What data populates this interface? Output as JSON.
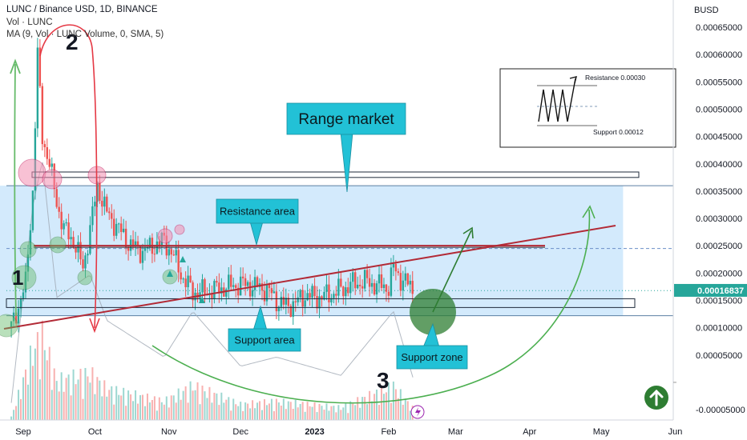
{
  "header": {
    "symbol_line": "LUNC / Binance USD, 1D, BINANCE",
    "vol_line": "Vol · LUNC",
    "ma_line": "MA (9, Vol · LUNC Volume, 0, SMA, 5)"
  },
  "axis": {
    "currency": "BUSD",
    "current_price_label": "0.00016837"
  },
  "chart_data": {
    "type": "candlestick",
    "title": "LUNC / Binance USD, 1D, BINANCE",
    "xlabel": "",
    "ylabel": "",
    "ylim": [
      -6e-05,
      0.00068
    ],
    "y_ticks": [
      0.00065,
      0.0006,
      0.00055,
      0.0005,
      0.00045,
      0.0004,
      0.00035,
      0.0003,
      0.00025,
      0.0002,
      0.00015,
      0.0001,
      5e-05,
      -5e-05
    ],
    "y_tick_labels": [
      "0.00065000",
      "0.00060000",
      "0.00055000",
      "0.00050000",
      "0.00045000",
      "0.00040000",
      "0.00035000",
      "0.00030000",
      "0.00025000",
      "0.00020000",
      "0.00015000",
      "0.00010000",
      "0.00005000",
      "-0.00005000"
    ],
    "x_ticks": [
      "2022-09-01",
      "2022-10-01",
      "2022-11-01",
      "2022-12-01",
      "2023-01-01",
      "2023-02-01",
      "2023-03-01",
      "2023-04-01",
      "2023-05-01",
      "2023-06-01"
    ],
    "x_tick_labels": [
      "Sep",
      "Oct",
      "Nov",
      "Dec",
      "2023",
      "Feb",
      "Mar",
      "Apr",
      "May",
      "Jun"
    ],
    "current_price": 0.00016837,
    "price_path": [
      [
        "2022-08-27",
        0.0001
      ],
      [
        "2022-09-02",
        0.00018
      ],
      [
        "2022-09-05",
        0.00035
      ],
      [
        "2022-09-07",
        0.0006
      ],
      [
        "2022-09-09",
        0.00045
      ],
      [
        "2022-09-12",
        0.0004
      ],
      [
        "2022-09-15",
        0.00033
      ],
      [
        "2022-09-18",
        0.00028
      ],
      [
        "2022-09-22",
        0.00026
      ],
      [
        "2022-09-26",
        0.00021
      ],
      [
        "2022-09-29",
        0.00028
      ],
      [
        "2022-10-02",
        0.00036
      ],
      [
        "2022-10-06",
        0.00031
      ],
      [
        "2022-10-11",
        0.00028
      ],
      [
        "2022-10-16",
        0.00025
      ],
      [
        "2022-10-21",
        0.00024
      ],
      [
        "2022-10-26",
        0.00025
      ],
      [
        "2022-10-30",
        0.00026
      ],
      [
        "2022-11-03",
        0.00023
      ],
      [
        "2022-11-07",
        0.00019
      ],
      [
        "2022-11-11",
        0.000165
      ],
      [
        "2022-11-16",
        0.000165
      ],
      [
        "2022-11-21",
        0.00017
      ],
      [
        "2022-11-26",
        0.000175
      ],
      [
        "2022-12-01",
        0.00018
      ],
      [
        "2022-12-07",
        0.000175
      ],
      [
        "2022-12-12",
        0.00017
      ],
      [
        "2022-12-16",
        0.00015
      ],
      [
        "2022-12-20",
        0.00014
      ],
      [
        "2022-12-24",
        0.000145
      ],
      [
        "2022-12-28",
        0.00016
      ],
      [
        "2023-01-02",
        0.000155
      ],
      [
        "2023-01-07",
        0.00016
      ],
      [
        "2023-01-12",
        0.00017
      ],
      [
        "2023-01-17",
        0.00018
      ],
      [
        "2023-01-22",
        0.000185
      ],
      [
        "2023-01-27",
        0.000178
      ],
      [
        "2023-02-01",
        0.000175
      ],
      [
        "2023-02-03",
        0.00021
      ],
      [
        "2023-02-06",
        0.00019
      ],
      [
        "2023-02-09",
        0.00018
      ],
      [
        "2023-02-12",
        0.000168
      ]
    ],
    "volume_path": [
      [
        "2022-08-27",
        0.02
      ],
      [
        "2022-09-05",
        0.45
      ],
      [
        "2022-09-09",
        0.55
      ],
      [
        "2022-09-15",
        0.25
      ],
      [
        "2022-09-29",
        0.3
      ],
      [
        "2022-10-06",
        0.2
      ],
      [
        "2022-10-30",
        0.12
      ],
      [
        "2022-11-11",
        0.22
      ],
      [
        "2022-12-01",
        0.1
      ],
      [
        "2022-12-16",
        0.12
      ],
      [
        "2023-01-12",
        0.08
      ],
      [
        "2023-02-03",
        0.22
      ],
      [
        "2023-02-12",
        0.06
      ]
    ],
    "horizontal_levels": [
      {
        "y": 0.00036,
        "style": "solid-thin"
      },
      {
        "y": 0.000245,
        "style": "dashed"
      },
      {
        "y": 0.000168,
        "style": "dotted"
      },
      {
        "y": 0.000122,
        "style": "solid-thin"
      }
    ],
    "range_band": {
      "from": "2022-08-27",
      "to": "2023-04-20",
      "y_top": 0.00036,
      "y_bottom": 0.000122
    },
    "resistance_line": {
      "from": "2022-09-02",
      "to": "2023-04-05",
      "y": 0.00025
    },
    "rising_trendline": {
      "from": [
        "2022-08-27",
        0.000105
      ],
      "to": [
        "2023-05-01",
        0.00028
      ]
    },
    "rectangles": [
      {
        "from": "2022-09-05",
        "to": "2023-04-20",
        "y_top": 0.000385,
        "y_bottom": 0.000375
      },
      {
        "from": "2022-08-27",
        "to": "2023-04-20",
        "y_top": 0.000153,
        "y_bottom": 0.000137
      }
    ],
    "annotations": [
      {
        "id": "range",
        "text": "Range market"
      },
      {
        "id": "resistance",
        "text": "Resistance area"
      },
      {
        "id": "support",
        "text": "Support area"
      },
      {
        "id": "support_zone",
        "text": "Support zone"
      }
    ],
    "wave_labels": [
      "1",
      "2",
      "3"
    ],
    "inset": {
      "resistance_text": "Resistance 0.00030",
      "support_text": "Support 0.00012"
    }
  },
  "colors": {
    "up": "#26a69a",
    "down": "#ef5350",
    "band": "#bbdefb",
    "callout": "#22c1d6",
    "trendline": "#b22a36",
    "green_curve": "#4caf50",
    "price_tag": "#26a69a"
  },
  "icons": {
    "up_arrow_button": "up-arrow-icon",
    "flash": "lightning-icon"
  }
}
